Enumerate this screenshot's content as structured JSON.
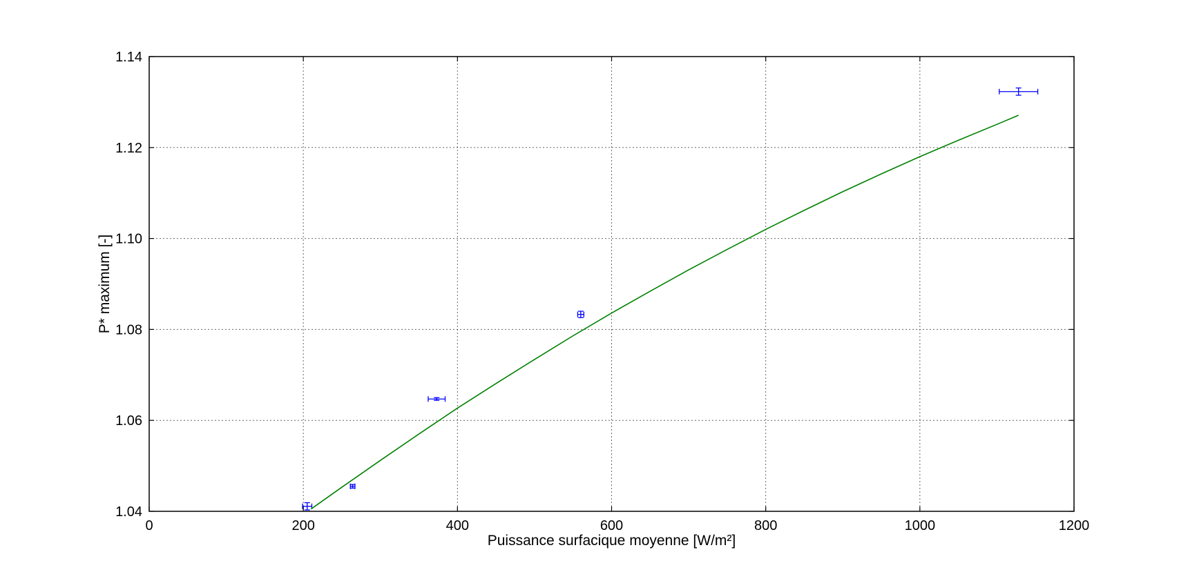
{
  "chart_data": {
    "type": "scatter",
    "title": "",
    "xlabel": "Puissance surfacique moyenne [W/m²]",
    "ylabel": "P* maximum [-]",
    "xlim": [
      0,
      1200
    ],
    "ylim": [
      1.04,
      1.14
    ],
    "x_ticks": [
      0,
      200,
      400,
      600,
      800,
      1000,
      1200
    ],
    "x_tick_labels": [
      "0",
      "200",
      "400",
      "600",
      "800",
      "1000",
      "1200"
    ],
    "y_ticks": [
      1.04,
      1.06,
      1.08,
      1.1,
      1.12,
      1.14
    ],
    "y_tick_labels": [
      "1.04",
      "1.06",
      "1.08",
      "1.10",
      "1.12",
      "1.14"
    ],
    "grid": true,
    "legend": "none",
    "series": [
      {
        "type": "errorbar",
        "color": "#0000ff",
        "points": [
          {
            "x": 205,
            "y": 1.0411,
            "xerr": 6,
            "yerr": 0.0008
          },
          {
            "x": 264,
            "y": 1.0455,
            "xerr": 3,
            "yerr": 0.0004
          },
          {
            "x": 373,
            "y": 1.0647,
            "xerr": 11,
            "yerr": 0.0003
          },
          {
            "x": 560,
            "y": 1.0833,
            "xerr": 4,
            "yerr": 0.0007
          },
          {
            "x": 1128,
            "y": 1.1323,
            "xerr": 25,
            "yerr": 0.0008
          }
        ]
      },
      {
        "type": "line",
        "color": "#008000",
        "x": [
          210,
          250,
          300,
          350,
          400,
          450,
          500,
          550,
          600,
          650,
          700,
          750,
          800,
          850,
          900,
          950,
          1000,
          1050,
          1100,
          1128
        ],
        "y": [
          1.0405,
          1.0453,
          1.0512,
          1.057,
          1.0627,
          1.0681,
          1.0734,
          1.0786,
          1.0836,
          1.0884,
          1.0931,
          1.0976,
          1.102,
          1.1062,
          1.1103,
          1.1142,
          1.118,
          1.1216,
          1.1251,
          1.1271
        ]
      }
    ]
  }
}
